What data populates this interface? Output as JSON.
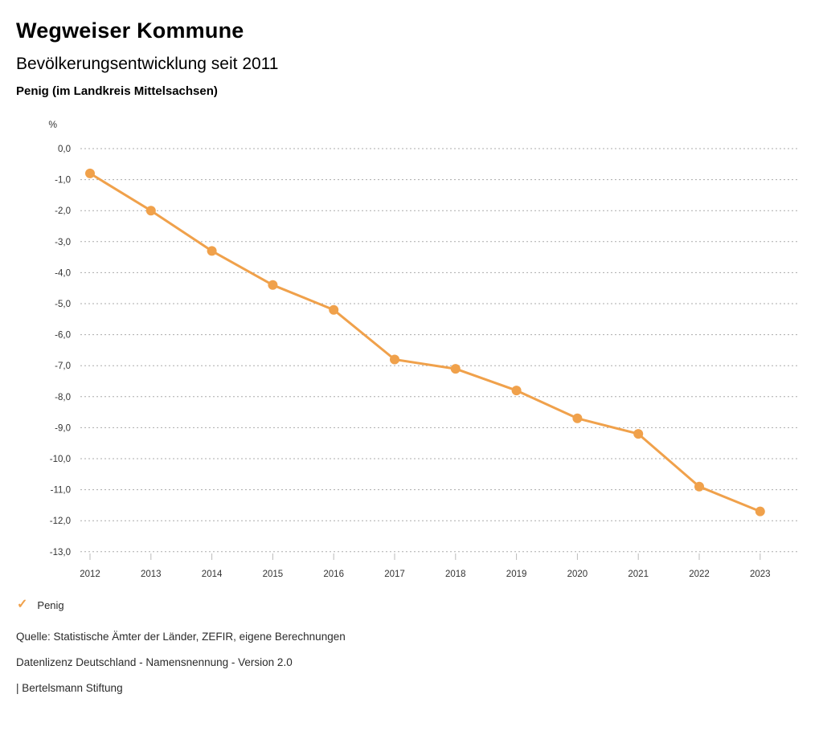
{
  "header": {
    "title": "Wegweiser Kommune",
    "subtitle": "Bevölkerungsentwicklung seit 2011",
    "region": "Penig (im Landkreis Mittelsachsen)"
  },
  "chart_data": {
    "type": "line",
    "title": "Bevölkerungsentwicklung seit 2011",
    "subtitle_region": "Penig (im Landkreis Mittelsachsen)",
    "unit_label": "%",
    "x": [
      "2012",
      "2013",
      "2014",
      "2015",
      "2016",
      "2017",
      "2018",
      "2019",
      "2020",
      "2021",
      "2022",
      "2023"
    ],
    "series": [
      {
        "name": "Penig",
        "color": "#F0A14B",
        "values": [
          -0.8,
          -2.0,
          -3.3,
          -4.4,
          -5.2,
          -6.8,
          -7.1,
          -7.8,
          -8.7,
          -9.2,
          -10.9,
          -11.7
        ]
      }
    ],
    "ylim": [
      -13,
      0
    ],
    "ytick_step": 1,
    "yticklabels": [
      "0,0",
      "-1,0",
      "-2,0",
      "-3,0",
      "-4,0",
      "-5,0",
      "-6,0",
      "-7,0",
      "-8,0",
      "-9,0",
      "-10,0",
      "-11,0",
      "-12,0",
      "-13,0"
    ],
    "grid": "horizontal-dotted",
    "legend_position": "bottom-left",
    "marker": "circle"
  },
  "legend": {
    "items": [
      {
        "label": "Penig",
        "icon": "check-icon",
        "color": "#F0A14B"
      }
    ]
  },
  "footer": {
    "lines": [
      "Quelle: Statistische Ämter der Länder, ZEFIR, eigene Berechnungen",
      "Datenlizenz Deutschland - Namensnennung - Version 2.0",
      "| Bertelsmann Stiftung"
    ]
  },
  "colors": {
    "accent": "#F0A14B",
    "grid": "#ABABAB",
    "tick": "#BBBBBB",
    "axis_text": "#333333",
    "title_text": "#000000"
  }
}
